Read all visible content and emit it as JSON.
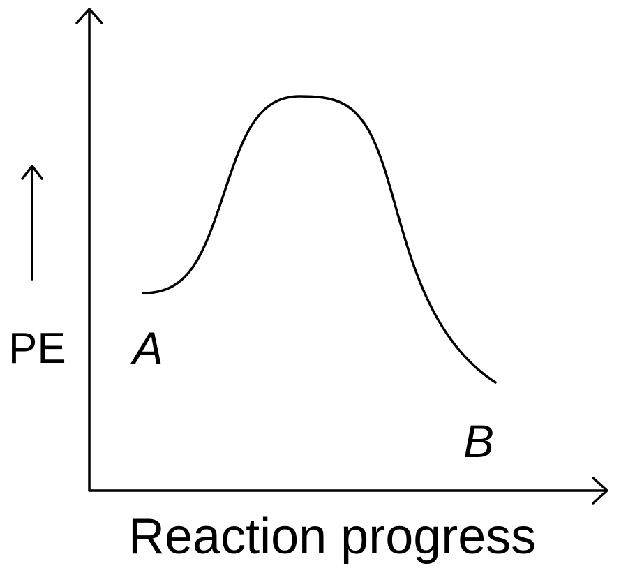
{
  "axes": {
    "y_label": "PE",
    "x_label": "Reaction progress"
  },
  "points": {
    "start": "A",
    "end": "B"
  }
}
